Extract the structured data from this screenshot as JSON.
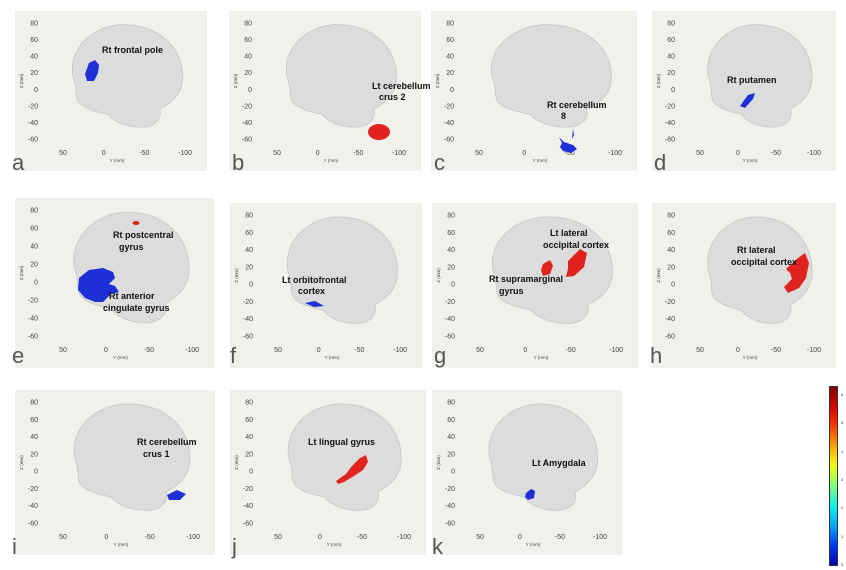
{
  "axis": {
    "z_label": "Z (mm)",
    "y_label": "Y (mm)",
    "z_ticks": [
      "80",
      "60",
      "40",
      "20",
      "0",
      "-20",
      "-40",
      "-60"
    ],
    "y_ticks": [
      "50",
      "0",
      "-50",
      "-100"
    ]
  },
  "colors": {
    "panel_bg": "#f1f1eb",
    "brain_fill": "#dcdcdc",
    "blue": "#1f2fd6",
    "red": "#e0231e"
  },
  "panels": [
    {
      "letter": "a",
      "label_lines": [
        "Rt frontal pole"
      ],
      "blob_color": "blue"
    },
    {
      "letter": "b",
      "label_lines": [
        "Lt cerebellum",
        "crus 2"
      ],
      "blob_color": "red"
    },
    {
      "letter": "c",
      "label_lines": [
        "Rt cerebellum",
        "8"
      ],
      "blob_color": "blue"
    },
    {
      "letter": "d",
      "label_lines": [
        "Rt putamen"
      ],
      "blob_color": "blue"
    },
    {
      "letter": "e",
      "label_lines": [
        "Rt postcentral",
        "gyrus",
        "Rt anterior",
        "cingulate gyrus"
      ],
      "blob_color": "blue+red"
    },
    {
      "letter": "f",
      "label_lines": [
        "Lt orbitofrontal",
        "cortex"
      ],
      "blob_color": "blue"
    },
    {
      "letter": "g",
      "label_lines": [
        "Lt lateral",
        "occipital cortex",
        "Rt supramarginal",
        "gyrus"
      ],
      "blob_color": "red"
    },
    {
      "letter": "h",
      "label_lines": [
        "Rt lateral",
        "occipital cortex"
      ],
      "blob_color": "red"
    },
    {
      "letter": "i",
      "label_lines": [
        "Rt cerebellum",
        "crus 1"
      ],
      "blob_color": "blue"
    },
    {
      "letter": "j",
      "label_lines": [
        "Lt lingual gyrus"
      ],
      "blob_color": "red"
    },
    {
      "letter": "k",
      "label_lines": [
        "Lt Amygdala"
      ],
      "blob_color": "blue"
    }
  ],
  "colorbar": {
    "ticks": [
      "6",
      "5",
      "4",
      "3",
      "2",
      "1",
      "0"
    ],
    "scale": "jet"
  }
}
